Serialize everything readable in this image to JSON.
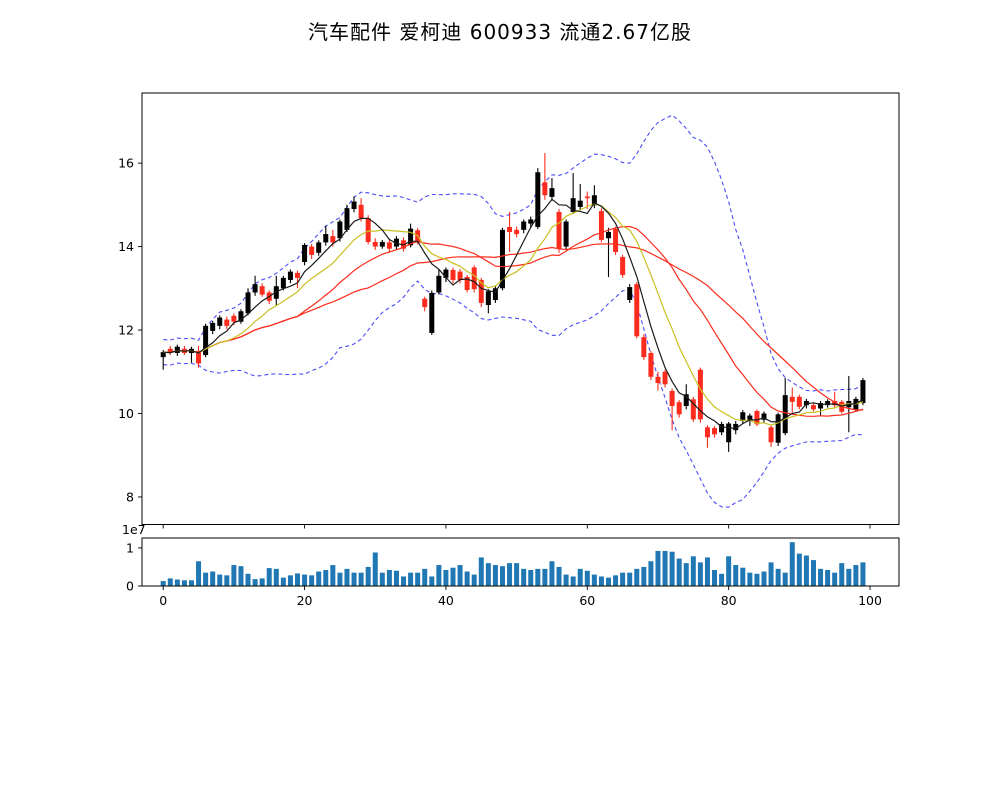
{
  "figure": {
    "title": "汽车配件 爱柯迪 600933 流通2.67亿股"
  },
  "chart_data": {
    "type": "candlestick",
    "title": "汽车配件 爱柯迪 600933 流通2.67亿股",
    "panels": [
      "price",
      "volume"
    ],
    "n_points": 100,
    "ohlc": {
      "open": [
        11.35,
        11.55,
        11.45,
        11.55,
        11.45,
        11.5,
        11.4,
        11.98,
        12.1,
        12.25,
        12.34,
        12.2,
        12.4,
        12.9,
        13.05,
        12.9,
        12.75,
        13.0,
        13.2,
        13.37,
        13.63,
        14.0,
        13.85,
        14.1,
        14.25,
        14.2,
        14.4,
        14.9,
        15.0,
        14.68,
        14.11,
        14.0,
        14.1,
        14.0,
        14.15,
        14.03,
        14.39,
        12.75,
        11.93,
        12.9,
        13.25,
        13.44,
        13.4,
        13.27,
        13.5,
        13.2,
        12.6,
        12.72,
        13.0,
        14.47,
        14.4,
        14.4,
        14.55,
        14.47,
        15.54,
        15.19,
        14.83,
        14.0,
        14.83,
        14.95,
        15.2,
        14.99,
        14.85,
        14.2,
        14.42,
        13.75,
        12.72,
        13.1,
        11.83,
        11.45,
        10.88,
        11.0,
        10.54,
        10.27,
        10.18,
        10.34,
        11.05,
        9.67,
        9.65,
        9.55,
        9.31,
        9.6,
        9.82,
        9.85,
        10.06,
        9.85,
        9.67,
        9.3,
        9.53,
        10.4,
        10.4,
        10.2,
        10.2,
        10.12,
        10.2,
        10.3,
        10.28,
        10.15,
        10.1,
        10.25
      ],
      "high": [
        11.52,
        11.62,
        11.65,
        11.62,
        11.6,
        11.62,
        12.15,
        12.22,
        12.35,
        12.32,
        12.4,
        12.5,
        13.0,
        13.3,
        13.12,
        12.95,
        13.3,
        13.3,
        13.45,
        13.42,
        14.08,
        14.06,
        14.15,
        14.5,
        14.4,
        14.65,
        15.0,
        15.2,
        15.16,
        14.75,
        14.2,
        14.16,
        14.18,
        14.25,
        14.22,
        14.55,
        14.45,
        12.8,
        12.95,
        13.45,
        13.5,
        13.5,
        13.46,
        13.32,
        13.55,
        13.25,
        12.98,
        13.05,
        14.45,
        14.83,
        14.48,
        14.65,
        14.72,
        15.88,
        16.24,
        15.64,
        14.9,
        14.65,
        15.76,
        15.5,
        15.32,
        15.47,
        14.92,
        14.45,
        14.48,
        13.8,
        13.1,
        13.15,
        11.9,
        11.5,
        11.0,
        11.05,
        10.6,
        10.32,
        10.7,
        10.4,
        11.1,
        9.72,
        9.7,
        9.8,
        9.8,
        9.82,
        10.08,
        10.0,
        10.1,
        10.05,
        9.72,
        10.02,
        10.85,
        10.62,
        10.45,
        10.35,
        10.26,
        10.3,
        10.34,
        10.52,
        10.32,
        10.9,
        10.4,
        10.85
      ],
      "low": [
        11.05,
        11.4,
        11.38,
        11.4,
        11.22,
        11.1,
        11.35,
        11.9,
        12.02,
        12.02,
        12.12,
        12.15,
        12.35,
        12.82,
        12.8,
        12.62,
        12.6,
        12.95,
        13.12,
        13.0,
        13.55,
        13.7,
        13.78,
        14.02,
        14.0,
        14.12,
        14.35,
        14.82,
        14.6,
        14.05,
        13.92,
        13.95,
        13.88,
        13.92,
        13.88,
        13.98,
        14.05,
        12.45,
        11.88,
        12.85,
        13.15,
        13.12,
        13.12,
        12.9,
        12.9,
        12.55,
        12.4,
        12.65,
        12.95,
        13.87,
        14.22,
        14.32,
        14.45,
        14.42,
        15.12,
        15.1,
        13.85,
        13.92,
        14.78,
        14.88,
        14.9,
        14.92,
        14.1,
        13.27,
        13.8,
        13.25,
        12.65,
        11.8,
        11.28,
        10.8,
        10.55,
        10.62,
        9.6,
        9.9,
        10.1,
        9.8,
        9.78,
        9.18,
        9.42,
        9.48,
        9.08,
        9.5,
        9.76,
        9.7,
        9.7,
        9.78,
        9.2,
        9.22,
        9.48,
        10.02,
        10.1,
        10.12,
        10.05,
        9.95,
        10.14,
        10.15,
        10.0,
        9.55,
        10.04,
        10.2
      ],
      "close": [
        11.47,
        11.45,
        11.6,
        11.45,
        11.55,
        11.2,
        12.1,
        12.17,
        12.3,
        12.1,
        12.2,
        12.45,
        12.9,
        13.1,
        12.85,
        12.7,
        13.05,
        13.25,
        13.4,
        13.25,
        14.04,
        13.8,
        14.1,
        14.3,
        14.1,
        14.6,
        14.92,
        15.08,
        14.68,
        14.11,
        14.0,
        14.11,
        13.95,
        14.19,
        13.95,
        14.43,
        14.11,
        12.55,
        12.89,
        13.3,
        13.45,
        13.2,
        13.2,
        12.96,
        12.98,
        12.65,
        12.93,
        13.0,
        14.4,
        14.35,
        14.3,
        14.6,
        14.65,
        15.78,
        15.23,
        15.4,
        13.95,
        14.6,
        15.16,
        15.1,
        15.16,
        15.23,
        14.16,
        14.35,
        13.87,
        13.32,
        13.03,
        11.85,
        11.35,
        10.88,
        10.73,
        10.7,
        10.18,
        9.98,
        10.46,
        9.86,
        9.86,
        9.43,
        9.5,
        9.75,
        9.76,
        9.75,
        10.03,
        9.95,
        9.74,
        10.0,
        9.31,
        9.98,
        10.44,
        10.28,
        10.16,
        10.3,
        10.1,
        10.25,
        10.3,
        10.2,
        10.04,
        10.3,
        10.35,
        10.8
      ]
    },
    "volume_1e7": [
      0.13,
      0.2,
      0.17,
      0.15,
      0.15,
      0.65,
      0.35,
      0.38,
      0.3,
      0.28,
      0.55,
      0.52,
      0.32,
      0.18,
      0.2,
      0.47,
      0.45,
      0.22,
      0.28,
      0.33,
      0.3,
      0.28,
      0.38,
      0.42,
      0.55,
      0.35,
      0.45,
      0.35,
      0.35,
      0.5,
      0.88,
      0.35,
      0.42,
      0.4,
      0.25,
      0.35,
      0.35,
      0.45,
      0.25,
      0.55,
      0.42,
      0.48,
      0.55,
      0.38,
      0.3,
      0.75,
      0.6,
      0.55,
      0.52,
      0.6,
      0.6,
      0.45,
      0.42,
      0.45,
      0.45,
      0.65,
      0.5,
      0.3,
      0.25,
      0.45,
      0.4,
      0.3,
      0.25,
      0.22,
      0.28,
      0.35,
      0.35,
      0.45,
      0.5,
      0.65,
      0.92,
      0.92,
      0.9,
      0.72,
      0.6,
      0.78,
      0.62,
      0.75,
      0.42,
      0.32,
      0.78,
      0.55,
      0.48,
      0.35,
      0.32,
      0.38,
      0.62,
      0.45,
      0.35,
      1.15,
      0.85,
      0.8,
      0.68,
      0.45,
      0.42,
      0.35,
      0.6,
      0.45,
      0.55,
      0.62
    ],
    "overlays": {
      "moving_averages": [
        {
          "name": "MA5",
          "window": 5,
          "color": "#1a1a1a"
        },
        {
          "name": "MA10",
          "window": 10,
          "color": "#c9c020"
        },
        {
          "name": "MA20",
          "window": 20,
          "color": "#fb2c1d"
        },
        {
          "name": "MA30",
          "window": 30,
          "color": "#fb2c1d"
        }
      ],
      "bollinger": {
        "window": 20,
        "k": 2,
        "color": "#4c4cfb",
        "style": "dashed"
      }
    },
    "axes": {
      "price": {
        "yticks": [
          8,
          10,
          12,
          14,
          16
        ],
        "ylim": [
          7.34,
          17.68
        ]
      },
      "volume": {
        "yticks": [
          0,
          1
        ],
        "ylim": [
          0,
          1.26
        ],
        "offset_label": "1e7"
      },
      "x": {
        "ticks": [
          0,
          20,
          40,
          60,
          80,
          100
        ],
        "lim": [
          -3,
          104.1
        ]
      }
    },
    "candle_colors": {
      "up": "#000000",
      "down": "#fb2c1d"
    },
    "volume_color": "#1f77b4"
  }
}
